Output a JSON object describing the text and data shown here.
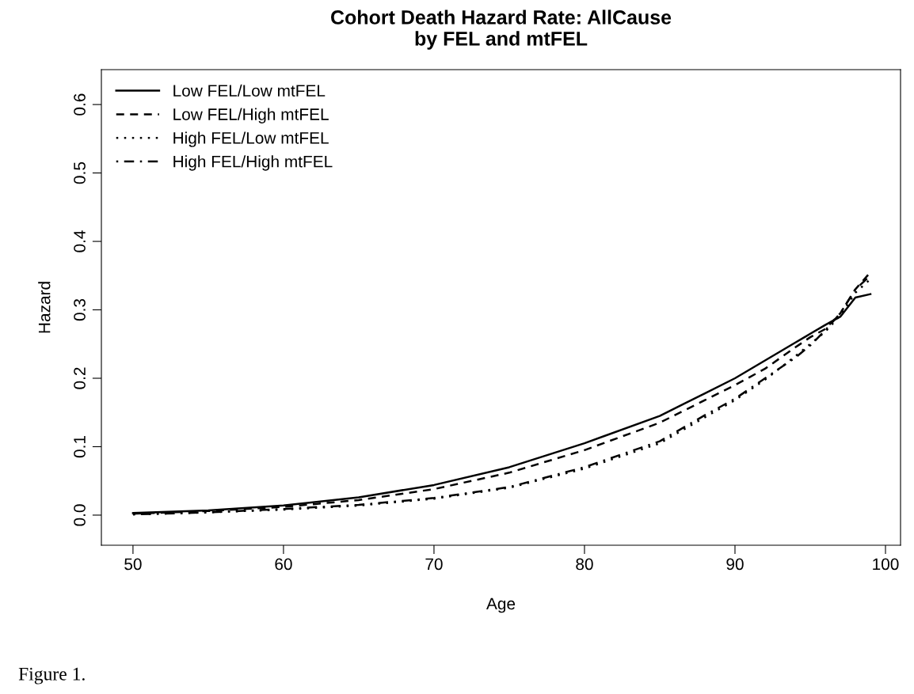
{
  "chart_data": {
    "type": "line",
    "title": "Cohort Death Hazard Rate: AllCause\nby FEL and mtFEL",
    "xlabel": "Age",
    "ylabel": "Hazard",
    "annotations": [
      "Figure 1."
    ],
    "x": [
      50,
      55,
      60,
      65,
      70,
      75,
      80,
      85,
      88,
      90,
      92,
      94,
      95,
      96,
      97,
      98,
      99
    ],
    "xlim": [
      47.9,
      101
    ],
    "ylim": [
      -0.044,
      0.651
    ],
    "xticks": [
      50,
      60,
      70,
      80,
      90,
      100
    ],
    "yticks": [
      {
        "value": 0,
        "label": "0.0"
      },
      0.1,
      0.2,
      0.3,
      0.4,
      0.5,
      0.6
    ],
    "grid": false,
    "legend": "top left",
    "marker": "none",
    "series": [
      {
        "name": "Low FEL/Low mtFEL",
        "color": "#000000",
        "line_style": "solid",
        "values": [
          0.003,
          0.007,
          0.014,
          0.026,
          0.044,
          0.07,
          0.105,
          0.145,
          0.178,
          0.2,
          0.226,
          0.252,
          0.265,
          0.278,
          0.29,
          0.318,
          0.323
        ]
      },
      {
        "name": "Low FEL/High mtFEL",
        "color": "#000000",
        "line_style": "dashed",
        "values": [
          0.002,
          0.006,
          0.012,
          0.022,
          0.038,
          0.062,
          0.095,
          0.135,
          0.168,
          0.19,
          0.214,
          0.245,
          0.26,
          0.272,
          0.295,
          0.33,
          0.355
        ]
      },
      {
        "name": "High FEL/Low mtFEL",
        "color": "#000000",
        "line_style": "dotted",
        "values": [
          0.001,
          0.004,
          0.008,
          0.014,
          0.024,
          0.04,
          0.068,
          0.105,
          0.143,
          0.168,
          0.198,
          0.232,
          0.25,
          0.268,
          0.292,
          0.325,
          0.345
        ]
      },
      {
        "name": "High FEL/High mtFEL",
        "color": "#000000",
        "line_style": "dashdot",
        "values": [
          0.001,
          0.004,
          0.009,
          0.015,
          0.025,
          0.041,
          0.07,
          0.108,
          0.146,
          0.17,
          0.2,
          0.23,
          0.248,
          0.27,
          0.295,
          0.33,
          0.35
        ]
      }
    ]
  }
}
